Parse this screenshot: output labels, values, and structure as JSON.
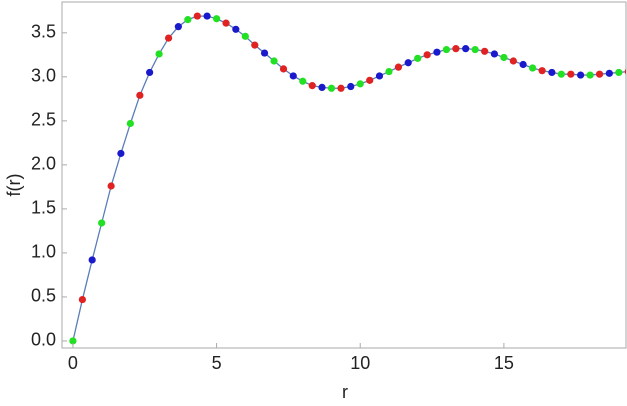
{
  "chart_data": {
    "type": "scatter-line",
    "x_label": "r",
    "y_label": "f(r)",
    "x": [
      0,
      0.33,
      0.67,
      1,
      1.33,
      1.67,
      2,
      2.33,
      2.67,
      3,
      3.33,
      3.67,
      4,
      4.33,
      4.67,
      5,
      5.33,
      5.67,
      6,
      6.33,
      6.67,
      7,
      7.33,
      7.67,
      8,
      8.33,
      8.67,
      9,
      9.33,
      9.67,
      10,
      10.33,
      10.67,
      11,
      11.33,
      11.67,
      12,
      12.33,
      12.67,
      13,
      13.33,
      13.67,
      14,
      14.33,
      14.67,
      15,
      15.33,
      15.67,
      16,
      16.33,
      16.67,
      17,
      17.33,
      17.67,
      18,
      18.33,
      18.67,
      19,
      19.33
    ],
    "values": [
      0,
      0.47,
      0.92,
      1.34,
      1.76,
      2.13,
      2.47,
      2.79,
      3.05,
      3.26,
      3.44,
      3.57,
      3.65,
      3.69,
      3.69,
      3.66,
      3.61,
      3.54,
      3.46,
      3.36,
      3.27,
      3.18,
      3.09,
      3.01,
      2.95,
      2.9,
      2.88,
      2.87,
      2.87,
      2.89,
      2.92,
      2.96,
      3.01,
      3.06,
      3.11,
      3.16,
      3.21,
      3.25,
      3.28,
      3.31,
      3.32,
      3.32,
      3.31,
      3.29,
      3.26,
      3.22,
      3.18,
      3.14,
      3.1,
      3.07,
      3.05,
      3.03,
      3.03,
      3.02,
      3.02,
      3.03,
      3.04,
      3.05,
      3.06
    ],
    "point_colors": [
      "#22e022",
      "#e02222",
      "#1a1acc"
    ],
    "line_color": "#5b7db8",
    "xlim": [
      -0.38,
      19.25
    ],
    "ylim": [
      -0.08,
      3.85
    ],
    "xticks": [
      0,
      5,
      10,
      15
    ],
    "yticks": [
      {
        "value": 0,
        "label": "0.0"
      },
      {
        "value": 0.5,
        "label": "0.5"
      },
      {
        "value": 1,
        "label": "1.0"
      },
      {
        "value": 1.5,
        "label": "1.5"
      },
      {
        "value": 2,
        "label": "2.0"
      },
      {
        "value": 2.5,
        "label": "2.5"
      },
      {
        "value": 3,
        "label": "3.0"
      },
      {
        "value": 3.5,
        "label": "3.5"
      }
    ]
  }
}
